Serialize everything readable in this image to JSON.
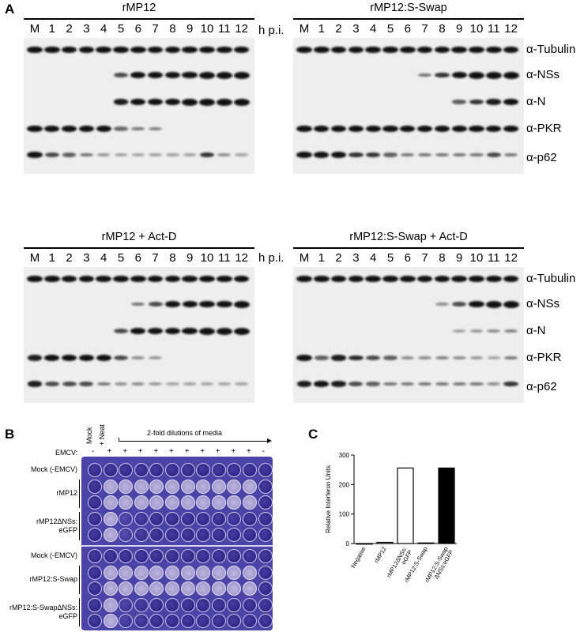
{
  "panel_a": {
    "letter": "A",
    "hpi_label": "h p.i.",
    "lanes": [
      "M",
      "1",
      "2",
      "3",
      "4",
      "5",
      "6",
      "7",
      "8",
      "9",
      "10",
      "11",
      "12"
    ],
    "antibodies": [
      "α-Tubulin",
      "α-NSs",
      "α-N",
      "α-PKR",
      "α-p62"
    ],
    "blots": [
      {
        "title": "rMP12",
        "intensity": {
          "tubulin": [
            0.9,
            0.9,
            0.9,
            0.9,
            0.9,
            0.9,
            0.9,
            0.9,
            0.9,
            0.9,
            0.9,
            0.9,
            0.9
          ],
          "nss": [
            0,
            0,
            0,
            0,
            0,
            0.5,
            0.8,
            0.9,
            0.9,
            0.95,
            1,
            1,
            1
          ],
          "n": [
            0,
            0,
            0,
            0,
            0,
            0.7,
            0.85,
            0.9,
            0.95,
            1,
            1,
            1,
            1
          ],
          "pkr": [
            0.8,
            0.75,
            0.8,
            0.8,
            0.85,
            0.35,
            0.3,
            0.25,
            0,
            0,
            0,
            0,
            0
          ],
          "p62": [
            0.9,
            0.5,
            0.4,
            0.3,
            0.15,
            0.1,
            0.1,
            0.1,
            0.1,
            0.1,
            0.6,
            0.2,
            0.1
          ]
        }
      },
      {
        "title": "rMP12:S-Swap",
        "intensity": {
          "tubulin": [
            0.9,
            0.9,
            0.9,
            0.9,
            0.9,
            0.9,
            0.9,
            0.9,
            0.9,
            0.9,
            0.9,
            0.9,
            0.9
          ],
          "nss": [
            0,
            0,
            0,
            0,
            0,
            0,
            0,
            0.3,
            0.6,
            0.85,
            1,
            1,
            1
          ],
          "n": [
            0,
            0,
            0,
            0,
            0,
            0,
            0,
            0,
            0,
            0.4,
            0.6,
            0.7,
            0.8
          ],
          "pkr": [
            0.85,
            0.85,
            0.8,
            0.8,
            0.8,
            0.8,
            0.8,
            0.8,
            0.8,
            0.8,
            0.8,
            0.75,
            0.75
          ],
          "p62": [
            0.8,
            0.75,
            0.8,
            0.6,
            0.6,
            0.4,
            0.3,
            0.3,
            0.3,
            0.3,
            0.3,
            0.5,
            0.3
          ]
        }
      },
      {
        "title": "rMP12 + Act-D",
        "intensity": {
          "tubulin": [
            0.9,
            0.9,
            0.9,
            0.9,
            0.9,
            0.9,
            0.9,
            0.9,
            0.9,
            0.9,
            0.9,
            0.9,
            0.9
          ],
          "nss": [
            0,
            0,
            0,
            0,
            0,
            0,
            0.3,
            0.5,
            0.75,
            0.85,
            0.9,
            0.95,
            1
          ],
          "n": [
            0,
            0,
            0,
            0,
            0,
            0.5,
            0.75,
            0.85,
            0.9,
            0.95,
            1,
            1,
            1
          ],
          "pkr": [
            0.7,
            0.75,
            0.85,
            0.85,
            0.85,
            0.5,
            0.2,
            0.15,
            0,
            0,
            0,
            0,
            0
          ],
          "p62": [
            0.7,
            0.5,
            0.5,
            0.5,
            0.3,
            0.2,
            0.2,
            0.15,
            0.1,
            0.1,
            0.1,
            0.1,
            0.1
          ]
        }
      },
      {
        "title": "rMP12:S-Swap + Act-D",
        "intensity": {
          "tubulin": [
            0.9,
            0.9,
            0.9,
            0.9,
            0.9,
            0.9,
            0.9,
            0.9,
            0.9,
            0.9,
            0.9,
            0.9,
            0.9
          ],
          "nss": [
            0,
            0,
            0,
            0,
            0,
            0,
            0,
            0,
            0.2,
            0.5,
            0.85,
            1,
            1
          ],
          "n": [
            0,
            0,
            0,
            0,
            0,
            0,
            0,
            0,
            0,
            0.1,
            0.15,
            0.2,
            0.25
          ],
          "pkr": [
            0.85,
            0.4,
            0.7,
            0.65,
            0.5,
            0.4,
            0.2,
            0.2,
            0.25,
            0.2,
            0.15,
            0.1,
            0.3
          ],
          "p62": [
            0.7,
            0.75,
            0.7,
            0.5,
            0.4,
            0.3,
            0.3,
            0.3,
            0.3,
            0.3,
            0.3,
            0.2,
            0.6
          ]
        }
      }
    ]
  },
  "panel_b": {
    "letter": "B",
    "emcv_label": "EMCV:",
    "col_mock": "Mock",
    "col_neat": "+ Neat",
    "dilution_label": "2-fold dilutions of media",
    "emcv_signs": [
      "-",
      "+",
      "+",
      "+",
      "+",
      "+",
      "+",
      "+",
      "+",
      "+",
      "+",
      "-"
    ],
    "row_groups": [
      {
        "label": "Mock (-EMCV)",
        "rows": 1
      },
      {
        "label": "rMP12",
        "rows": 2
      },
      {
        "label": "rMP12ΔNSs:\neGFP",
        "rows": 2
      },
      {
        "label": "Mock (-EMCV)",
        "rows": 1
      },
      {
        "label": "rMP12:S-Swap",
        "rows": 2
      },
      {
        "label": "rMP12:S-SwapΔNSs:\neGFP",
        "rows": 2
      }
    ],
    "wells": [
      [
        1,
        1,
        1,
        1,
        1,
        1,
        1,
        1,
        1,
        1,
        1,
        1
      ],
      [
        1,
        0.2,
        0.2,
        0.3,
        0.2,
        0.2,
        0.3,
        0.2,
        0.3,
        0.2,
        0.2,
        1
      ],
      [
        1,
        0.2,
        0.2,
        0.2,
        0.3,
        0.2,
        0.2,
        0.2,
        0.2,
        0.2,
        0.3,
        1
      ],
      [
        1,
        0.2,
        0.7,
        0.9,
        1,
        1,
        1,
        1,
        1,
        0.9,
        1,
        1
      ],
      [
        1,
        0.2,
        0.7,
        0.9,
        1,
        1,
        1,
        1,
        1,
        1,
        1,
        1
      ],
      [
        1,
        1,
        1,
        1,
        1,
        1,
        1,
        1,
        1,
        1,
        1,
        1
      ],
      [
        1,
        0.2,
        0.2,
        0.2,
        0.2,
        0.2,
        0.2,
        0.2,
        0.2,
        0.2,
        0.2,
        1
      ],
      [
        1,
        0.2,
        0.2,
        0.2,
        0.2,
        0.2,
        0.2,
        0.2,
        0.2,
        0.2,
        0.2,
        1
      ],
      [
        1,
        0.2,
        0.8,
        0.9,
        1,
        1,
        1,
        1,
        1,
        1,
        1,
        1
      ],
      [
        1,
        0.2,
        0.8,
        0.9,
        1,
        1,
        1,
        1,
        1,
        1,
        1,
        1
      ]
    ]
  },
  "panel_c": {
    "letter": "C",
    "chart_data": {
      "type": "bar",
      "categories": [
        "Negative",
        "rMP12",
        "rMP12ΔNSs:\neGFP",
        "rMP12:S-Swap",
        "rMP12:S-Swap\nΔNSs:eGFP"
      ],
      "values": [
        0,
        4,
        256,
        2,
        256
      ],
      "fills": [
        "#ffffff",
        "#ffffff",
        "#ffffff",
        "#ffffff",
        "#000000"
      ],
      "ylabel": "Relative Interferon Units",
      "ylim": [
        0,
        300
      ],
      "yticks": [
        0,
        100,
        200,
        300
      ]
    }
  }
}
